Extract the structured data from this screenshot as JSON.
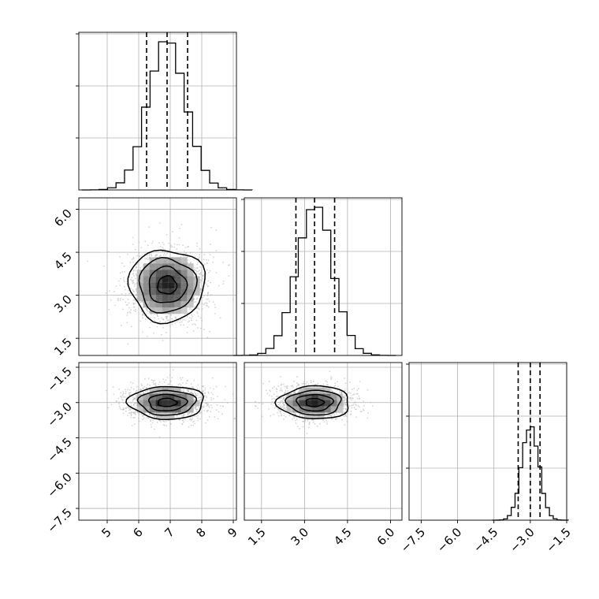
{
  "chart_data": {
    "type": "corner",
    "grid": true,
    "variables": [
      {
        "ticks": [
          5,
          6,
          7,
          8,
          9
        ],
        "tick_labels": [
          "5",
          "6",
          "7",
          "8",
          "9"
        ],
        "range": [
          4.1,
          9.1
        ],
        "quantiles": [
          6.25,
          6.9,
          7.55
        ],
        "center": 6.9,
        "sigma": 0.6,
        "hist_ylim": [
          0,
          1.0
        ]
      },
      {
        "ticks": [
          1.5,
          3.0,
          4.5,
          6.0
        ],
        "tick_labels": [
          "1.5",
          "3.0",
          "4.5",
          "6.0"
        ],
        "range": [
          0.9,
          6.4
        ],
        "quantiles": [
          2.7,
          3.35,
          4.05
        ],
        "center": 3.35,
        "sigma": 0.63,
        "hist_ylim": [
          0,
          1.0
        ]
      },
      {
        "ticks": [
          -7.5,
          -6.0,
          -4.5,
          -3.0,
          -1.5
        ],
        "tick_labels": [
          "−7.5",
          "−6.0",
          "−4.5",
          "−3.0",
          "−1.5"
        ],
        "range": [
          -8.0,
          -1.5
        ],
        "quantiles": [
          -3.5,
          -3.0,
          -2.6
        ],
        "center": -3.0,
        "sigma": 0.35,
        "hist_ylim": [
          0,
          0.63
        ]
      }
    ],
    "joint_ticks": {
      "y1": {
        "ticks": [
          1.5,
          3.0,
          4.5,
          6.0
        ],
        "labels": [
          "1.5",
          "3.0",
          "4.5",
          "6.0"
        ]
      },
      "y2": {
        "ticks": [
          -7.5,
          -6.0,
          -4.5,
          -3.0,
          -1.5
        ],
        "labels": [
          "−7.5",
          "−6.0",
          "−4.5",
          "−3.0",
          "−1.5"
        ],
        "range": [
          -8.0,
          -1.3
        ]
      }
    },
    "hist_bins": 20,
    "contour_levels": [
      0.5,
      1.0,
      1.5,
      2.0
    ]
  }
}
